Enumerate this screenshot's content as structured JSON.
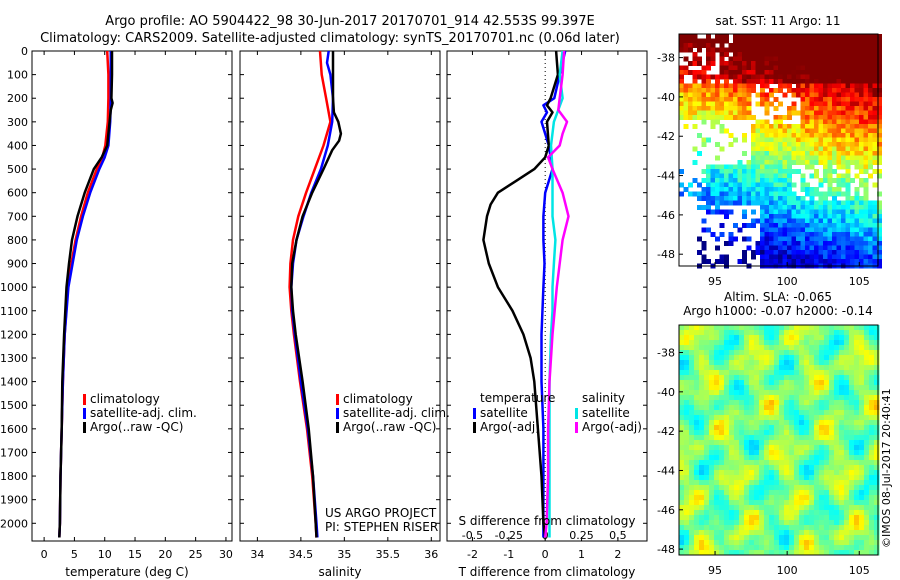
{
  "header": {
    "title_line1": "Argo profile: AO 5904422_98 30-Jun-2017 20170701_914 42.553S 99.397E",
    "title_line2": "Climatology: CARS2009. Satellite-adjusted climatology: synTS_20170701.nc (0.06d later)"
  },
  "colors": {
    "climatology": "#ff0000",
    "satellite": "#0000ff",
    "argo": "#000000",
    "salinity_satellite": "#00e5e5",
    "salinity_argo": "#ff00ff"
  },
  "chart_data": [
    {
      "type": "line",
      "xlabel": "temperature (deg C)",
      "ylabel": "",
      "xlim": [
        -2,
        31
      ],
      "ylim": [
        2075,
        0
      ],
      "xticks": [
        "0",
        "5",
        "10",
        "15",
        "20",
        "25",
        "30"
      ],
      "yticks": [
        "0",
        "100",
        "200",
        "300",
        "400",
        "500",
        "600",
        "700",
        "800",
        "900",
        "1000",
        "1100",
        "1200",
        "1300",
        "1400",
        "1500",
        "1600",
        "1700",
        "1800",
        "1900",
        "2000"
      ],
      "legend": [
        "climatology",
        "satellite-adj. clim.",
        "Argo(..raw -QC)"
      ],
      "legend_position": "lower-right",
      "series": [
        {
          "name": "climatology",
          "depth": [
            0,
            100,
            200,
            300,
            400,
            450,
            500,
            600,
            700,
            800,
            900,
            1000,
            1200,
            1400,
            1600,
            1800,
            2000,
            2060
          ],
          "values": [
            10.4,
            10.6,
            10.6,
            10.5,
            10.1,
            9.6,
            8.7,
            7.2,
            6.1,
            5.2,
            4.5,
            3.9,
            3.4,
            3.1,
            2.9,
            2.7,
            2.6,
            2.5
          ]
        },
        {
          "name": "satellite-adj. clim.",
          "depth": [
            0,
            100,
            200,
            300,
            400,
            450,
            500,
            600,
            700,
            800,
            900,
            1000,
            1200,
            1400,
            1600,
            1800,
            2000,
            2060
          ],
          "values": [
            11.0,
            11.0,
            11.0,
            10.9,
            10.6,
            10.0,
            9.1,
            7.6,
            6.4,
            5.4,
            4.7,
            4.0,
            3.4,
            3.1,
            2.9,
            2.7,
            2.6,
            2.5
          ]
        },
        {
          "name": "Argo(..raw -QC)",
          "depth": [
            0,
            100,
            200,
            220,
            250,
            300,
            400,
            450,
            500,
            600,
            700,
            800,
            900,
            1000,
            1200,
            1400,
            1600,
            1800,
            2000,
            2060
          ],
          "values": [
            11.2,
            11.2,
            11.1,
            11.3,
            11.0,
            10.8,
            10.4,
            9.5,
            8.2,
            6.7,
            5.5,
            4.6,
            4.1,
            3.7,
            3.3,
            3.0,
            2.9,
            2.7,
            2.6,
            2.5
          ]
        }
      ]
    },
    {
      "type": "line",
      "xlabel": "salinity",
      "xlim": [
        33.8,
        36.1
      ],
      "ylim": [
        2075,
        0
      ],
      "xticks": [
        "34",
        "34.5",
        "35",
        "35.5",
        "36"
      ],
      "legend": [
        "climatology",
        "satellite-adj. clim.",
        "Argo(..raw -QC)"
      ],
      "legend_position": "lower-right",
      "annotations": [
        "US ARGO PROJECT",
        "PI: STEPHEN RISER"
      ],
      "series": [
        {
          "name": "climatology",
          "depth": [
            0,
            100,
            200,
            300,
            400,
            500,
            600,
            700,
            800,
            900,
            1000,
            1100,
            1200,
            1400,
            1600,
            1800,
            2000,
            2060
          ],
          "values": [
            34.72,
            34.74,
            34.79,
            34.84,
            34.76,
            34.66,
            34.56,
            34.47,
            34.41,
            34.38,
            34.37,
            34.39,
            34.42,
            34.49,
            34.57,
            34.63,
            34.67,
            34.68
          ]
        },
        {
          "name": "satellite-adj. clim.",
          "depth": [
            0,
            50,
            100,
            200,
            300,
            400,
            500,
            600,
            700,
            800,
            900,
            1000,
            1100,
            1200,
            1400,
            1600,
            1800,
            2000,
            2060
          ],
          "values": [
            34.82,
            34.8,
            34.84,
            34.87,
            34.86,
            34.81,
            34.73,
            34.62,
            34.53,
            34.45,
            34.41,
            34.39,
            34.4,
            34.43,
            34.5,
            34.58,
            34.64,
            34.68,
            34.69
          ]
        },
        {
          "name": "Argo(..raw -QC)",
          "depth": [
            0,
            100,
            200,
            260,
            300,
            350,
            380,
            420,
            500,
            600,
            700,
            800,
            900,
            1000,
            1100,
            1200,
            1400,
            1600,
            1800,
            2000,
            2060
          ],
          "values": [
            34.87,
            34.87,
            34.87,
            34.88,
            34.93,
            34.96,
            34.94,
            34.86,
            34.76,
            34.63,
            34.52,
            34.45,
            34.4,
            34.39,
            34.41,
            34.44,
            34.52,
            34.59,
            34.64,
            34.67,
            34.68
          ]
        }
      ]
    },
    {
      "type": "line",
      "xlabel": "T difference from climatology",
      "title2": "S difference from climatology",
      "xlim": [
        -2.7,
        2.8
      ],
      "ylim": [
        2075,
        0
      ],
      "xticks": [
        "-2",
        "-1",
        "0",
        "1",
        "2"
      ],
      "sticks": [
        "-0.5",
        "-0.25",
        "0",
        "0.25",
        "0.5"
      ],
      "legend_temperature_title": "temperature",
      "legend_salinity_title": "salinity",
      "legend_temperature": [
        "satellite",
        "Argo(-adj)"
      ],
      "legend_salinity": [
        "satellite",
        "Argo(-adj)"
      ],
      "series": [
        {
          "name": "temperature satellite",
          "depth": [
            0,
            100,
            200,
            230,
            260,
            300,
            400,
            500,
            600,
            700,
            800,
            900,
            1000,
            1200,
            1400,
            1600,
            1800,
            2000,
            2060
          ],
          "values": [
            0.55,
            0.4,
            0.25,
            -0.05,
            0.05,
            -0.1,
            0.1,
            0.2,
            0.0,
            -0.05,
            -0.05,
            -0.02,
            -0.05,
            -0.1,
            -0.1,
            -0.05,
            -0.05,
            -0.05,
            -0.05
          ]
        },
        {
          "name": "temperature Argo(-adj)",
          "depth": [
            0,
            100,
            200,
            230,
            260,
            300,
            400,
            450,
            500,
            550,
            600,
            650,
            700,
            800,
            900,
            1000,
            1100,
            1200,
            1300,
            1400,
            1600,
            1800,
            2000,
            2060
          ],
          "values": [
            0.3,
            0.35,
            0.15,
            0.05,
            0.2,
            0.05,
            0.1,
            0.0,
            -0.3,
            -0.8,
            -1.3,
            -1.5,
            -1.6,
            -1.7,
            -1.55,
            -1.3,
            -0.9,
            -0.6,
            -0.4,
            -0.3,
            -0.2,
            -0.1,
            -0.05,
            0.0
          ]
        },
        {
          "name": "salinity satellite",
          "depth": [
            0,
            100,
            200,
            300,
            400,
            500,
            600,
            700,
            800,
            900,
            1000,
            1100,
            1200,
            1400,
            1600,
            1800,
            2000,
            2060
          ],
          "values": [
            0.12,
            0.1,
            0.12,
            0.06,
            0.04,
            0.05,
            0.05,
            0.05,
            0.07,
            0.06,
            0.05,
            0.05,
            0.04,
            0.03,
            0.03,
            0.03,
            0.03,
            0.03
          ]
        },
        {
          "name": "salinity Argo(-adj)",
          "depth": [
            0,
            100,
            200,
            250,
            300,
            350,
            400,
            450,
            500,
            600,
            700,
            800,
            900,
            1000,
            1200,
            1400,
            1600,
            1800,
            2000,
            2060
          ],
          "values": [
            0.13,
            0.12,
            0.1,
            0.09,
            0.15,
            0.12,
            0.1,
            0.02,
            0.05,
            0.12,
            0.16,
            0.12,
            0.1,
            0.08,
            0.05,
            0.03,
            0.02,
            0.02,
            0.01,
            0.0
          ]
        }
      ]
    },
    {
      "type": "heatmap",
      "title": "sat. SST: 11  Argo: 11",
      "xticks": [
        "95",
        "100",
        "105"
      ],
      "yticks": [
        "-38",
        "-40",
        "-42",
        "-44",
        "-46",
        "-48"
      ]
    },
    {
      "type": "heatmap",
      "title": "Altim. SLA: -0.065",
      "subtitle": "Argo h1000: -0.07 h2000: -0.14",
      "xticks": [
        "95",
        "100",
        "105"
      ],
      "yticks": [
        "-38",
        "-40",
        "-42",
        "-44",
        "-46",
        "-48"
      ],
      "annotation": "©IMOS 08-Jul-2017 20:40:41"
    }
  ]
}
